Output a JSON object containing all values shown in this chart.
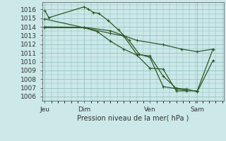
{
  "title": "Pression niveau de la mer( hPa )",
  "bg_color": "#cce8e8",
  "grid_color": "#88bbbb",
  "line_color": "#2d5a27",
  "ylim": [
    1005.5,
    1016.8
  ],
  "yticks": [
    1006,
    1007,
    1008,
    1009,
    1010,
    1011,
    1012,
    1013,
    1014,
    1015,
    1016
  ],
  "xlim": [
    -0.1,
    6.8
  ],
  "day_positions": [
    0.0,
    1.5,
    4.0,
    5.8
  ],
  "day_labels": [
    "Jeu",
    "Dim",
    "Ven",
    "Sam"
  ],
  "line1_x": [
    0.0,
    0.15,
    1.5,
    1.65,
    1.85,
    2.05,
    2.4,
    2.8,
    3.2,
    3.6,
    4.0,
    4.5,
    5.0,
    5.4
  ],
  "line1_y": [
    1015.9,
    1015.05,
    1016.3,
    1016.05,
    1015.65,
    1015.55,
    1014.75,
    1013.65,
    1012.45,
    1010.85,
    1010.5,
    1007.15,
    1006.9,
    1006.7
  ],
  "line2_x": [
    0.0,
    1.5,
    2.0,
    2.5,
    3.0,
    3.5,
    4.0,
    4.5,
    5.0,
    5.4,
    5.8,
    6.4
  ],
  "line2_y": [
    1014.9,
    1013.9,
    1013.45,
    1012.35,
    1011.45,
    1010.75,
    1009.25,
    1009.15,
    1006.65,
    1006.65,
    1006.65,
    1011.45
  ],
  "line3_x": [
    0.0,
    1.5,
    2.5,
    3.0,
    3.5,
    4.0,
    4.5,
    5.0,
    5.4,
    5.8,
    6.4
  ],
  "line3_y": [
    1013.9,
    1013.9,
    1013.25,
    1012.95,
    1010.85,
    1010.65,
    1008.35,
    1006.95,
    1006.85,
    1006.55,
    1010.15
  ],
  "line4_x": [
    0.0,
    1.5,
    2.5,
    3.5,
    4.5,
    5.2,
    5.8,
    6.4
  ],
  "line4_y": [
    1014.0,
    1013.95,
    1013.55,
    1012.45,
    1011.95,
    1011.45,
    1011.15,
    1011.45
  ]
}
